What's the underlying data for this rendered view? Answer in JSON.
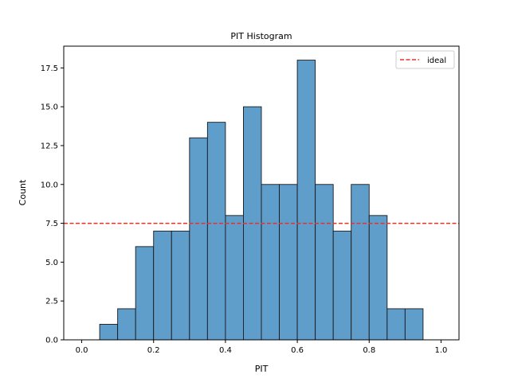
{
  "chart_data": {
    "type": "bar",
    "title": "PIT Histogram",
    "xlabel": "PIT",
    "ylabel": "Count",
    "xlim": [
      -0.05,
      1.05
    ],
    "ylim": [
      0,
      18.9
    ],
    "bin_edges": [
      0.0,
      0.05,
      0.1,
      0.15,
      0.2,
      0.25,
      0.3,
      0.35,
      0.4,
      0.45,
      0.5,
      0.55,
      0.6,
      0.65,
      0.7,
      0.75,
      0.8,
      0.85,
      0.9,
      0.95,
      1.0
    ],
    "values": [
      0,
      1,
      2,
      6,
      7,
      7,
      13,
      14,
      8,
      15,
      10,
      10,
      18,
      10,
      7,
      10,
      8,
      2,
      2,
      0
    ],
    "bar_color": "#5f9ecb",
    "bar_edge_color": "#1a1a1a",
    "x_ticks": [
      {
        "value": 0.0,
        "label": "0.0"
      },
      {
        "value": 0.2,
        "label": "0.2"
      },
      {
        "value": 0.4,
        "label": "0.4"
      },
      {
        "value": 0.6,
        "label": "0.6"
      },
      {
        "value": 0.8,
        "label": "0.8"
      },
      {
        "value": 1.0,
        "label": "1.0"
      }
    ],
    "y_ticks": [
      {
        "value": 0.0,
        "label": "0.0"
      },
      {
        "value": 2.5,
        "label": "2.5"
      },
      {
        "value": 5.0,
        "label": "5.0"
      },
      {
        "value": 7.5,
        "label": "7.5"
      },
      {
        "value": 10.0,
        "label": "10.0"
      },
      {
        "value": 12.5,
        "label": "12.5"
      },
      {
        "value": 15.0,
        "label": "15.0"
      },
      {
        "value": 17.5,
        "label": "17.5"
      }
    ],
    "reference_line": {
      "label": "ideal",
      "y": 7.5,
      "color": "#e8302a",
      "style": "dashed"
    },
    "legend": {
      "position": "top-right",
      "entries": [
        "ideal"
      ]
    },
    "grid": false
  }
}
